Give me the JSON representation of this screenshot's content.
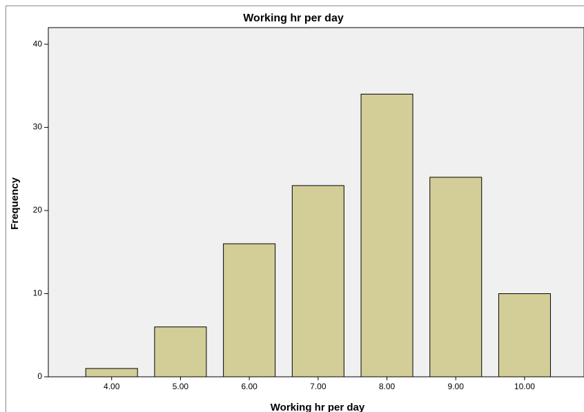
{
  "chart_data": {
    "type": "bar",
    "title": "Working hr per day",
    "x_label": "Working hr per day",
    "y_label": "Frequency",
    "categories": [
      "4.00",
      "5.00",
      "6.00",
      "7.00",
      "8.00",
      "9.00",
      "10.00"
    ],
    "values": [
      1,
      6,
      16,
      23,
      34,
      24,
      10
    ],
    "color": "#d3ce97",
    "ylim": [
      0,
      42
    ],
    "yticks": [
      0,
      10,
      20,
      30,
      40
    ],
    "grid": false
  }
}
